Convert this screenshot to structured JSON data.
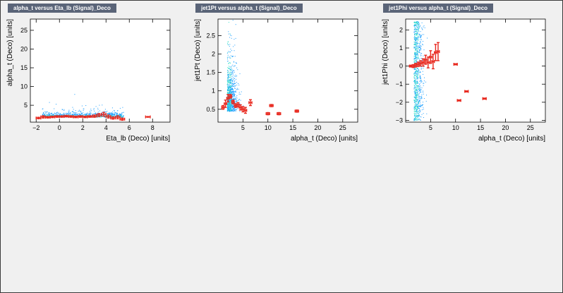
{
  "colors": {
    "background": "#f0f0f0",
    "title_bg": "#5a6478",
    "title_text": "#ffffff",
    "scatter_blue": "#1ea0ff",
    "scatter_cyan": "#33e0c8",
    "profile_red": "#e8281e"
  },
  "chart_data": [
    {
      "type": "scatter",
      "title": "alpha_t versus Eta_lb (Signal)_Deco",
      "xlabel": "Eta_lb (Deco)  [units]",
      "ylabel": "alpha_t (Deco)  [units]",
      "xlim": [
        -2.5,
        9.5
      ],
      "ylim": [
        0.5,
        28
      ],
      "xticks": [
        -2,
        0,
        2,
        4,
        6,
        8
      ],
      "yticks": [
        5,
        10,
        15,
        20,
        25
      ],
      "scatter_region": {
        "x": [
          -1.5,
          5.5
        ],
        "y": [
          0.8,
          7
        ]
      },
      "profile": {
        "name": "",
        "points": [
          {
            "x": -1.8,
            "y": 1.6,
            "ex": 0.2,
            "ey": 0.2
          },
          {
            "x": -1.4,
            "y": 1.9,
            "ex": 0.2,
            "ey": 0.3
          },
          {
            "x": -1.0,
            "y": 1.8,
            "ex": 0.2,
            "ey": 0.2
          },
          {
            "x": -0.6,
            "y": 1.9,
            "ex": 0.2,
            "ey": 0.2
          },
          {
            "x": -0.2,
            "y": 2.0,
            "ex": 0.2,
            "ey": 0.2
          },
          {
            "x": 0.2,
            "y": 2.0,
            "ex": 0.2,
            "ey": 0.2
          },
          {
            "x": 0.6,
            "y": 2.1,
            "ex": 0.2,
            "ey": 0.2
          },
          {
            "x": 1.0,
            "y": 2.0,
            "ex": 0.2,
            "ey": 0.2
          },
          {
            "x": 1.4,
            "y": 1.9,
            "ex": 0.2,
            "ey": 0.2
          },
          {
            "x": 1.8,
            "y": 2.0,
            "ex": 0.2,
            "ey": 0.2
          },
          {
            "x": 2.2,
            "y": 1.9,
            "ex": 0.2,
            "ey": 0.2
          },
          {
            "x": 2.6,
            "y": 2.0,
            "ex": 0.2,
            "ey": 0.2
          },
          {
            "x": 3.0,
            "y": 2.1,
            "ex": 0.2,
            "ey": 0.3
          },
          {
            "x": 3.4,
            "y": 2.4,
            "ex": 0.2,
            "ey": 0.4
          },
          {
            "x": 3.8,
            "y": 2.6,
            "ex": 0.2,
            "ey": 0.5
          },
          {
            "x": 4.2,
            "y": 2.0,
            "ex": 0.2,
            "ey": 0.4
          },
          {
            "x": 4.6,
            "y": 1.6,
            "ex": 0.2,
            "ey": 0.3
          },
          {
            "x": 5.0,
            "y": 1.8,
            "ex": 0.2,
            "ey": 0.4
          },
          {
            "x": 5.4,
            "y": 1.3,
            "ex": 0.2,
            "ey": 0.3
          },
          {
            "x": 7.6,
            "y": 1.9,
            "ex": 0.2,
            "ey": 0.1
          }
        ]
      }
    },
    {
      "type": "scatter",
      "title": "jet1Pt versus alpha_t (Signal)_Deco",
      "xlabel": "alpha_t (Deco)  [units]",
      "ylabel": "jet1Pt (Deco)  [units]",
      "xlim": [
        0,
        28
      ],
      "ylim": [
        0.15,
        2.95
      ],
      "xticks": [
        5,
        10,
        15,
        20,
        25
      ],
      "yticks": [
        0.5,
        1,
        1.5,
        2,
        2.5
      ],
      "scatter_region": {
        "x": [
          0.5,
          5.5
        ],
        "y": [
          0.2,
          2.8
        ]
      },
      "profile": {
        "name": "",
        "points": [
          {
            "x": 1.0,
            "y": 0.55,
            "ex": 0.25,
            "ey": 0.05
          },
          {
            "x": 1.5,
            "y": 0.65,
            "ex": 0.25,
            "ey": 0.1
          },
          {
            "x": 2.0,
            "y": 0.8,
            "ex": 0.25,
            "ey": 0.1
          },
          {
            "x": 2.5,
            "y": 0.85,
            "ex": 0.25,
            "ey": 0.05
          },
          {
            "x": 3.0,
            "y": 0.7,
            "ex": 0.25,
            "ey": 0.05
          },
          {
            "x": 3.5,
            "y": 0.6,
            "ex": 0.25,
            "ey": 0.05
          },
          {
            "x": 4.0,
            "y": 0.62,
            "ex": 0.25,
            "ey": 0.06
          },
          {
            "x": 4.5,
            "y": 0.55,
            "ex": 0.25,
            "ey": 0.07
          },
          {
            "x": 5.0,
            "y": 0.5,
            "ex": 0.25,
            "ey": 0.07
          },
          {
            "x": 5.5,
            "y": 0.47,
            "ex": 0.25,
            "ey": 0.08
          },
          {
            "x": 6.5,
            "y": 0.68,
            "ex": 0.3,
            "ey": 0.08
          },
          {
            "x": 10.0,
            "y": 0.38,
            "ex": 0.35,
            "ey": 0.03
          },
          {
            "x": 10.7,
            "y": 0.6,
            "ex": 0.35,
            "ey": 0.03
          },
          {
            "x": 12.2,
            "y": 0.38,
            "ex": 0.35,
            "ey": 0.03
          },
          {
            "x": 15.8,
            "y": 0.45,
            "ex": 0.35,
            "ey": 0.03
          }
        ]
      }
    },
    {
      "type": "scatter",
      "title": "jet1Phi versus alpha_t (Signal)_Deco",
      "xlabel": "alpha_t (Deco)  [units]",
      "ylabel": "jet1Phi (Deco)  [units]",
      "xlim": [
        0,
        28
      ],
      "ylim": [
        -3.1,
        2.6
      ],
      "xticks": [
        5,
        10,
        15,
        20,
        25
      ],
      "yticks": [
        -3,
        -2,
        -1,
        0,
        1,
        2
      ],
      "scatter_region": {
        "x": [
          0.5,
          5.5
        ],
        "y": [
          -3,
          2.5
        ]
      },
      "profile": {
        "name": "",
        "points": [
          {
            "x": 1.0,
            "y": 0.0,
            "ex": 0.25,
            "ey": 0.05
          },
          {
            "x": 1.5,
            "y": 0.0,
            "ex": 0.25,
            "ey": 0.08
          },
          {
            "x": 2.0,
            "y": 0.05,
            "ex": 0.25,
            "ey": 0.1
          },
          {
            "x": 2.5,
            "y": 0.1,
            "ex": 0.25,
            "ey": 0.12
          },
          {
            "x": 3.0,
            "y": 0.15,
            "ex": 0.25,
            "ey": 0.15
          },
          {
            "x": 3.5,
            "y": 0.2,
            "ex": 0.25,
            "ey": 0.2
          },
          {
            "x": 4.0,
            "y": 0.35,
            "ex": 0.25,
            "ey": 0.25
          },
          {
            "x": 4.5,
            "y": 0.2,
            "ex": 0.25,
            "ey": 0.3
          },
          {
            "x": 5.0,
            "y": 0.5,
            "ex": 0.25,
            "ey": 0.35
          },
          {
            "x": 5.5,
            "y": 0.25,
            "ex": 0.25,
            "ey": 0.4
          },
          {
            "x": 6.0,
            "y": 0.75,
            "ex": 0.25,
            "ey": 0.45
          },
          {
            "x": 6.5,
            "y": 0.8,
            "ex": 0.25,
            "ey": 0.5
          },
          {
            "x": 10.0,
            "y": 0.1,
            "ex": 0.35,
            "ey": 0.03
          },
          {
            "x": 10.7,
            "y": -1.9,
            "ex": 0.35,
            "ey": 0.03
          },
          {
            "x": 12.2,
            "y": -1.4,
            "ex": 0.35,
            "ey": 0.03
          },
          {
            "x": 15.8,
            "y": -1.8,
            "ex": 0.35,
            "ey": 0.03
          }
        ]
      }
    }
  ]
}
